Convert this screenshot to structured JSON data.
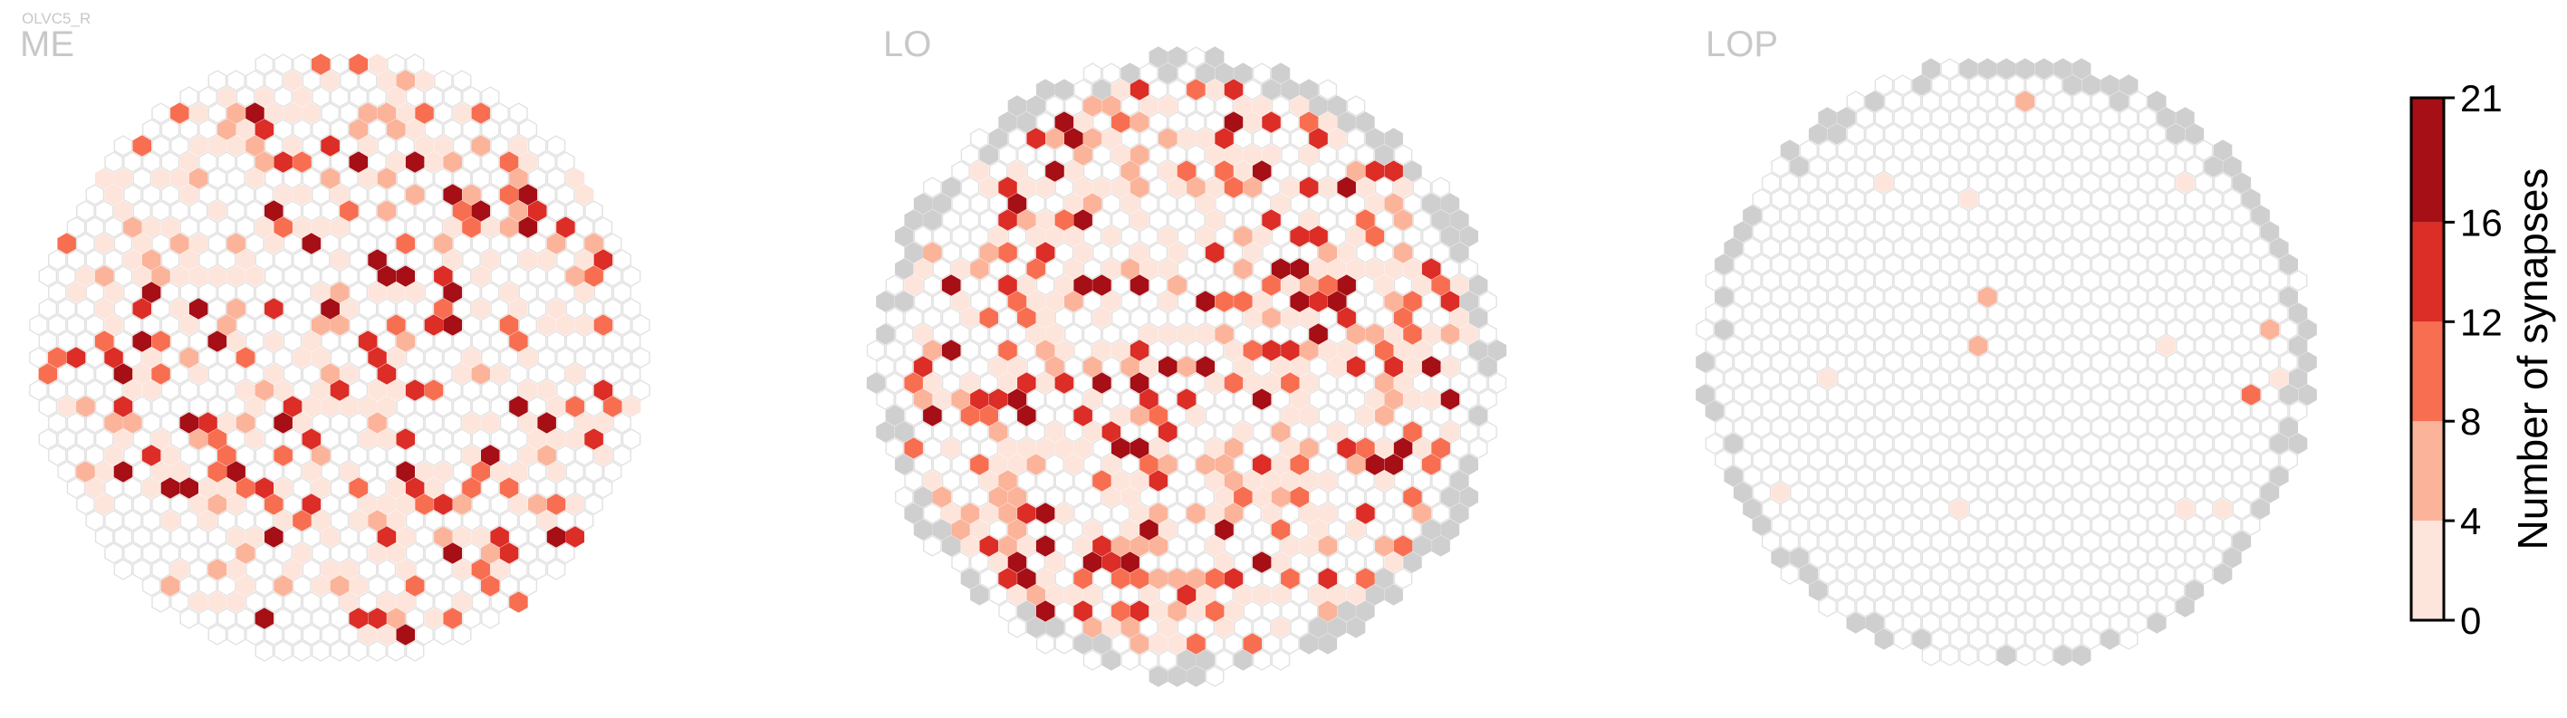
{
  "figure": {
    "cell_type": "OLVC5_R"
  },
  "colors": {
    "empty_edge": "#e2e2e2",
    "no_data_fill": "#cfcfcf",
    "bins": [
      "#fde5dc",
      "#fbb39a",
      "#f86e51",
      "#dc2d27",
      "#a50f15"
    ]
  },
  "chart_data": [
    {
      "type": "heatmap",
      "title": "ME",
      "encoding": "hexagonal column grid; fill = synapse count bin",
      "occupied_fraction": 0.45,
      "max_value": 19
    },
    {
      "type": "heatmap",
      "title": "LO",
      "encoding": "hexagonal column grid; fill = synapse count bin",
      "occupied_fraction": 0.55,
      "max_value": 21,
      "has_unmapped_columns": true
    },
    {
      "type": "heatmap",
      "title": "LOP",
      "encoding": "hexagonal column grid; fill = synapse count bin",
      "occupied_fraction": 0.02,
      "max_value": 11,
      "has_unmapped_columns": true
    }
  ],
  "colorbar": {
    "label": "Number of synapses",
    "ticks": [
      "21",
      "16",
      "12",
      "8",
      "4",
      "0"
    ],
    "tick_values": [
      21,
      16,
      12,
      8,
      4,
      0
    ],
    "range": [
      0,
      21
    ]
  }
}
